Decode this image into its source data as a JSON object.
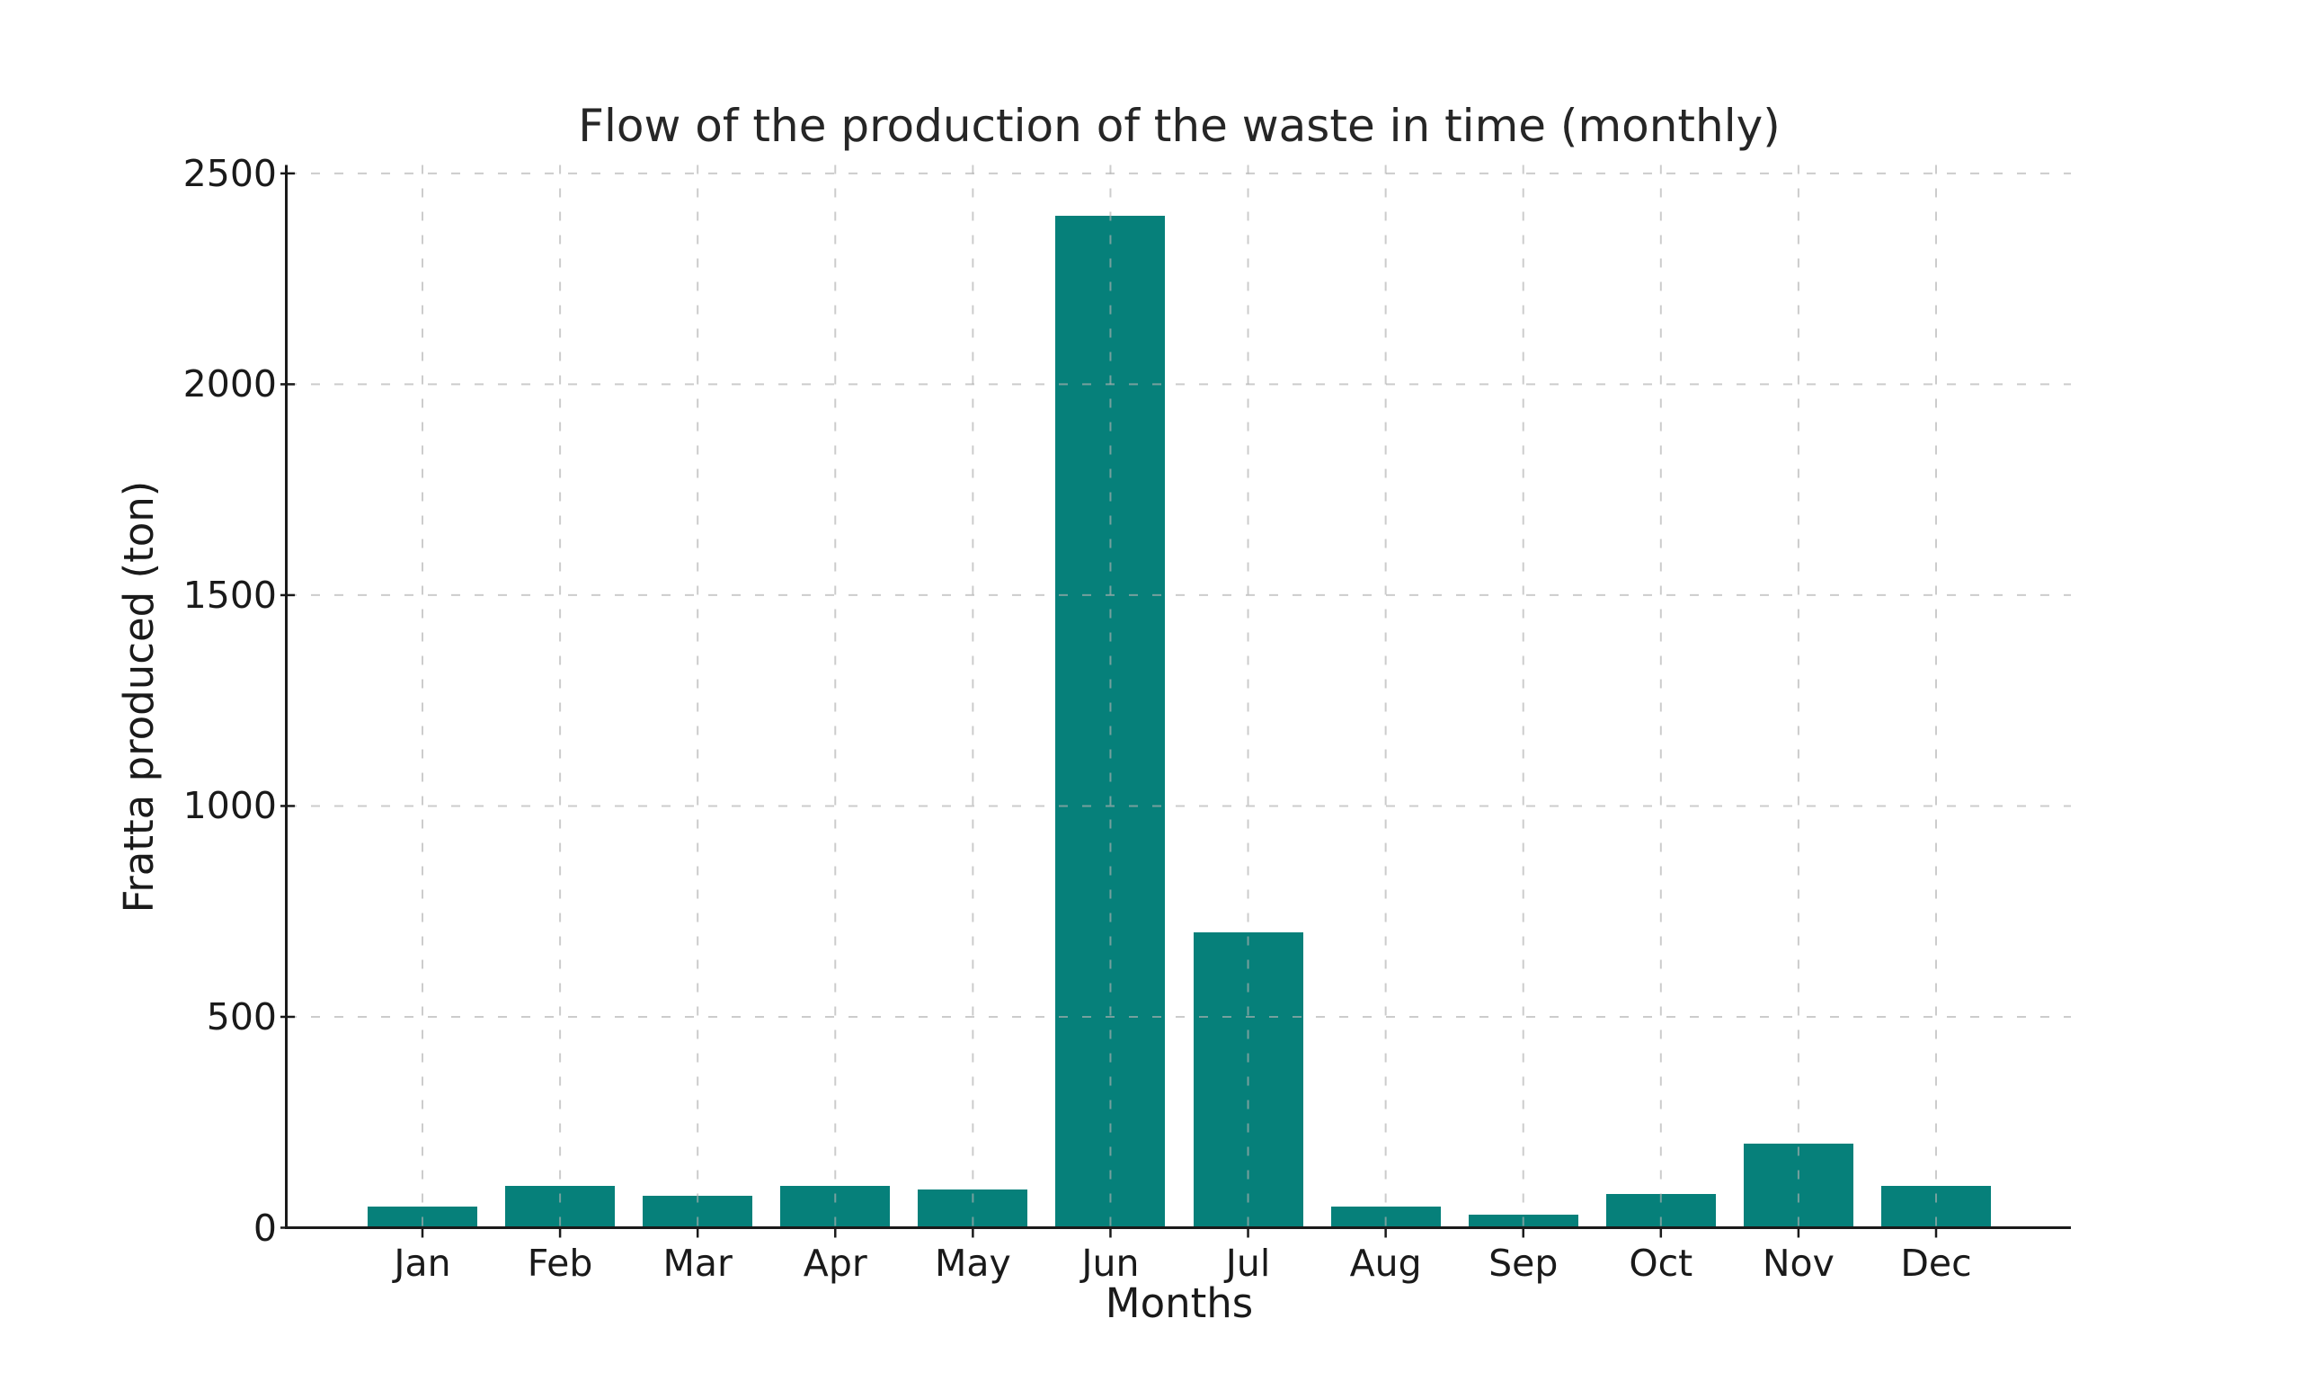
{
  "figure": {
    "background": "#ffffff",
    "text_color": "#1a1a1a",
    "title_color": "#262626"
  },
  "chart_data": {
    "type": "bar",
    "title": "Flow of the production of the waste in time (monthly)",
    "xlabel": "Months",
    "ylabel": "Fratta produced (ton)",
    "categories": [
      "Jan",
      "Feb",
      "Mar",
      "Apr",
      "May",
      "Jun",
      "Jul",
      "Aug",
      "Sep",
      "Oct",
      "Nov",
      "Dec"
    ],
    "values": [
      50,
      100,
      75,
      100,
      90,
      2400,
      700,
      50,
      30,
      80,
      200,
      100
    ],
    "yticks": [
      0,
      500,
      1000,
      1500,
      2000,
      2500
    ],
    "ylim": [
      0,
      2520
    ],
    "bar_color": "#06807a",
    "axis_color": "#1a1a1a",
    "grid": {
      "visible": true,
      "horizontal": true,
      "vertical": true,
      "linestyle": "dashed",
      "color": "#b0b0b0",
      "opacity": 0.65
    },
    "legend": {
      "visible": false
    },
    "spines": [
      "left",
      "bottom"
    ]
  }
}
